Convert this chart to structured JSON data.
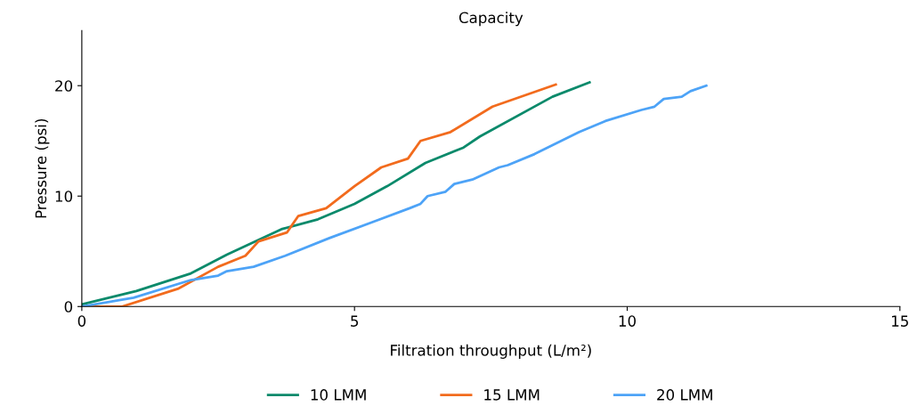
{
  "chart_data": {
    "type": "line",
    "title": "Capacity",
    "xlabel": "Filtration throughput (L/m²)",
    "ylabel": "Pressure (psi)",
    "xlim": [
      0,
      15
    ],
    "xticks": [
      0,
      5,
      10,
      15
    ],
    "ylim": [
      0,
      25
    ],
    "yticks": [
      0,
      10,
      20
    ],
    "grid": false,
    "legend": "bottom",
    "marker": "none",
    "line_style": "solid",
    "series": [
      {
        "name": "10 LMM",
        "color": "#0b8a6b",
        "x": [
          0,
          1,
          2.0,
          2.66,
          3.66,
          4.33,
          5,
          5.6,
          6.3,
          7.0,
          7.3,
          8.63,
          9.31
        ],
        "values": [
          0.2,
          1.4,
          3.0,
          4.7,
          7.0,
          7.9,
          9.3,
          10.9,
          13.0,
          14.4,
          15.4,
          19.0,
          20.3
        ]
      },
      {
        "name": "15 LMM",
        "color": "#f26b1d",
        "x": [
          0,
          0.74,
          1.76,
          2.5,
          3.0,
          3.24,
          3.76,
          3.97,
          4.48,
          5.0,
          5.49,
          5.98,
          6.21,
          6.76,
          7.53,
          8.69
        ],
        "values": [
          0,
          0,
          1.6,
          3.6,
          4.6,
          5.9,
          6.7,
          8.2,
          8.9,
          10.9,
          12.6,
          13.4,
          15.0,
          15.8,
          18.1,
          20.1
        ]
      },
      {
        "name": "20 LMM",
        "color": "#4da3f7",
        "x": [
          0,
          0.95,
          2,
          2.5,
          2.66,
          3.15,
          3.73,
          4.54,
          5.36,
          6.01,
          6.21,
          6.34,
          6.67,
          6.83,
          7.16,
          7.65,
          7.81,
          8.3,
          9.12,
          9.6,
          10.26,
          10.5,
          10.67,
          11.0,
          11.16,
          11.45
        ],
        "values": [
          0,
          0.8,
          2.4,
          2.8,
          3.2,
          3.6,
          4.6,
          6.2,
          7.7,
          8.9,
          9.3,
          10.0,
          10.4,
          11.1,
          11.5,
          12.6,
          12.8,
          13.8,
          15.8,
          16.8,
          17.8,
          18.1,
          18.8,
          19.0,
          19.5,
          20.0
        ]
      }
    ]
  }
}
